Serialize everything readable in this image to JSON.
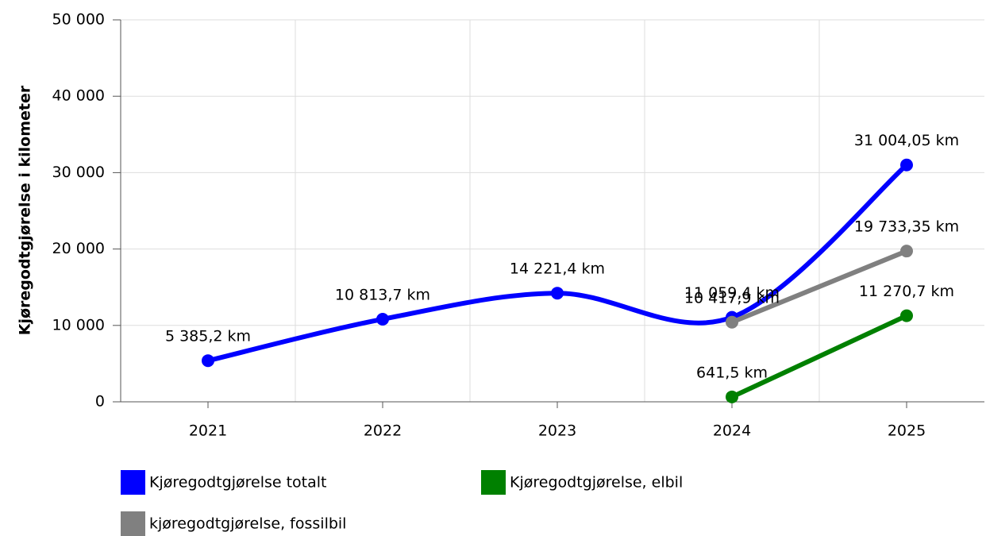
{
  "chart_data": {
    "type": "line",
    "y_label": "Kjøregodtgjørelse i kilometer",
    "categories": [
      "2021",
      "2022",
      "2023",
      "2024",
      "2025"
    ],
    "series": [
      {
        "name": "Kjøregodtgjørelse totalt",
        "color": "#0000ff",
        "smooth": true,
        "values": [
          5385.2,
          10813.7,
          14221.4,
          11059.4,
          31004.05
        ],
        "value_labels": [
          "5 385,2 km",
          "10 813,7 km",
          "14 221,4 km",
          "11 059,4 km",
          "31 004,05 km"
        ]
      },
      {
        "name": "Kjøregodtgjørelse, elbil",
        "color": "#008000",
        "smooth": false,
        "values": [
          null,
          null,
          null,
          641.5,
          11270.7
        ],
        "value_labels": [
          null,
          null,
          null,
          "641,5 km",
          "11 270,7 km"
        ]
      },
      {
        "name": "kjøregodtgjørelse, fossilbil",
        "color": "#808080",
        "smooth": false,
        "values": [
          null,
          null,
          null,
          10417.9,
          19733.35
        ],
        "value_labels": [
          null,
          null,
          null,
          "10 417,9 km",
          "19 733,35 km"
        ]
      }
    ],
    "ylim": [
      0,
      50000
    ],
    "yticks": [
      0,
      {
        "value": 10000,
        "label": "10 000"
      },
      {
        "value": 20000,
        "label": "20 000"
      },
      {
        "value": 30000,
        "label": "30 000"
      },
      {
        "value": 40000,
        "label": "40 000"
      },
      {
        "value": 50000,
        "label": "50 000"
      }
    ],
    "grid": true
  }
}
